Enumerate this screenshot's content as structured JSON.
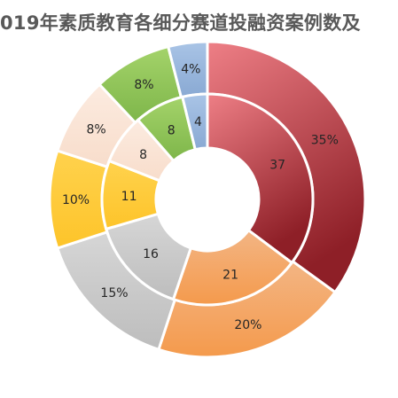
{
  "title": "019年素质教育各细分赛道投融资案例数及",
  "chart_data": {
    "type": "pie",
    "subtype": "double-doughnut",
    "direction": "clockwise, starting at 12 o'clock",
    "title": "019年素质教育各细分赛道投融资案例数及",
    "outer_ring": {
      "labels": [
        "35%",
        "20%",
        "15%",
        "10%",
        "8%",
        "8%",
        "4%"
      ],
      "values": [
        35,
        20,
        15,
        10,
        8,
        8,
        4
      ]
    },
    "inner_ring": {
      "labels": [
        "37",
        "21",
        "16",
        "11",
        "8",
        "8",
        "4"
      ],
      "values": [
        37,
        21,
        16,
        11,
        8,
        8,
        4
      ]
    },
    "colors": [
      "#c9424a",
      "#f0a565",
      "#c9c9c9",
      "#ffcc33",
      "#fbe4d5",
      "#8cc63f",
      "#9ab7db"
    ]
  }
}
